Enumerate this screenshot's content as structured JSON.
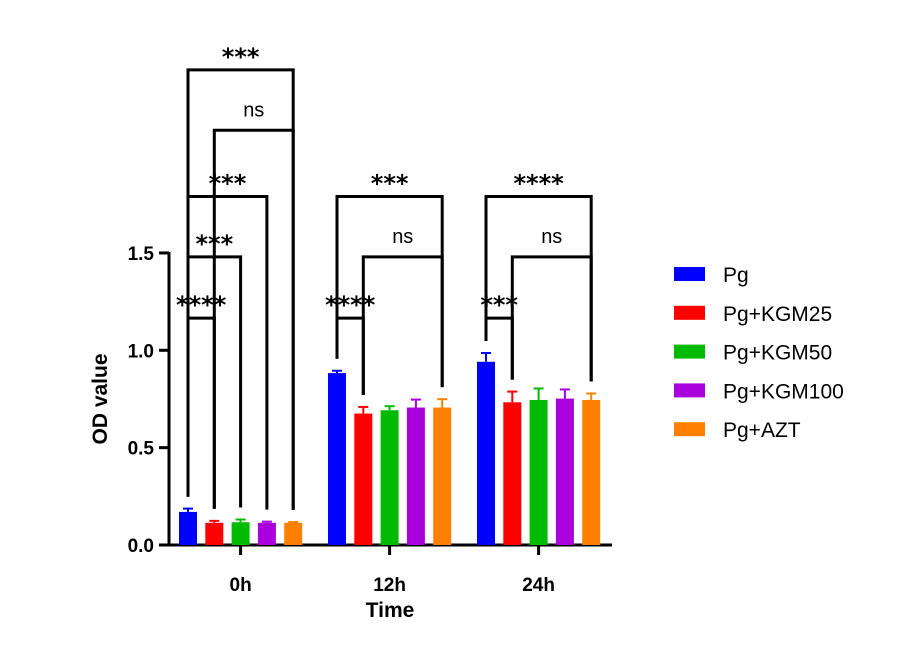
{
  "chart_data": {
    "type": "bar",
    "title": "",
    "xlabel": "Time",
    "ylabel": "OD value",
    "ylim": [
      0,
      1.5
    ],
    "yticks": [
      "0.0",
      "0.5",
      "1.0",
      "1.5"
    ],
    "ytick_values": [
      0,
      0.5,
      1.0,
      1.5
    ],
    "categories": [
      "0h",
      "12h",
      "24h"
    ],
    "legend_position": "right",
    "series": [
      {
        "name": "Pg",
        "color": "#0000ff",
        "values": [
          0.17,
          0.883,
          0.941
        ],
        "errors": [
          0.017,
          0.012,
          0.045
        ]
      },
      {
        "name": "Pg+KGM25",
        "color": "#ff0000",
        "values": [
          0.114,
          0.675,
          0.733
        ],
        "errors": [
          0.01,
          0.034,
          0.055
        ]
      },
      {
        "name": "Pg+KGM50",
        "color": "#00bb00",
        "values": [
          0.117,
          0.692,
          0.745
        ],
        "errors": [
          0.014,
          0.021,
          0.059
        ]
      },
      {
        "name": "Pg+KGM100",
        "color": "#aa00dd",
        "values": [
          0.114,
          0.706,
          0.752
        ],
        "errors": [
          0.006,
          0.041,
          0.047
        ]
      },
      {
        "name": "Pg+AZT",
        "color": "#ff8000",
        "values": [
          0.114,
          0.706,
          0.745
        ],
        "errors": [
          0.004,
          0.043,
          0.033
        ]
      }
    ],
    "significance": [
      {
        "group": 0,
        "from": 0,
        "to": 1,
        "label": "****",
        "level": 1.165
      },
      {
        "group": 0,
        "from": 0,
        "to": 2,
        "label": "***",
        "level": 1.48
      },
      {
        "group": 0,
        "from": 0,
        "to": 3,
        "label": "***",
        "level": 1.79
      },
      {
        "group": 0,
        "from": 1,
        "to": 4,
        "label": "ns",
        "level": 2.13
      },
      {
        "group": 0,
        "from": 0,
        "to": 4,
        "label": "***",
        "level": 2.44
      },
      {
        "group": 1,
        "from": 0,
        "to": 1,
        "label": "****",
        "level": 1.165
      },
      {
        "group": 1,
        "from": 1,
        "to": 4,
        "label": "ns",
        "level": 1.48
      },
      {
        "group": 1,
        "from": 0,
        "to": 4,
        "label": "***",
        "level": 1.79
      },
      {
        "group": 2,
        "from": 0,
        "to": 1,
        "label": "***",
        "level": 1.165
      },
      {
        "group": 2,
        "from": 1,
        "to": 4,
        "label": "ns",
        "level": 1.48
      },
      {
        "group": 2,
        "from": 0,
        "to": 4,
        "label": "****",
        "level": 1.79
      }
    ]
  }
}
